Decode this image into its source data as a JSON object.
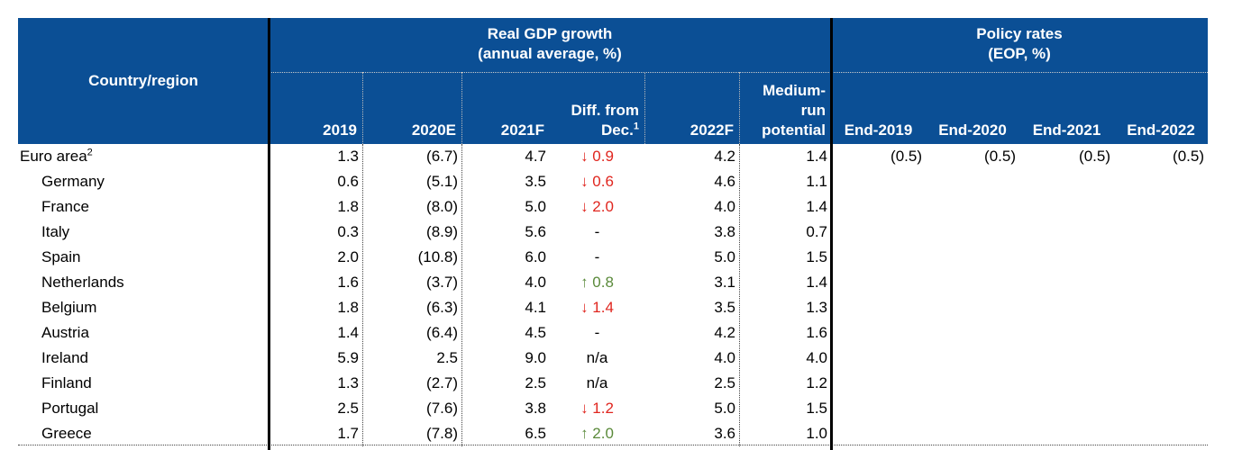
{
  "table": {
    "header": {
      "country": "Country/region",
      "gdp_group": [
        "Real GDP growth",
        "(annual average, %)"
      ],
      "policy_group": [
        "Policy rates",
        "(EOP, %)"
      ],
      "columns": [
        {
          "lines": [
            "2019"
          ]
        },
        {
          "lines": [
            "2020E"
          ]
        },
        {
          "lines": [
            "2021F"
          ]
        },
        {
          "lines": [
            "Diff. from",
            "Dec."
          ],
          "note": "1"
        },
        {
          "lines": [
            "2022F"
          ]
        },
        {
          "lines": [
            "Medium-",
            "run",
            "potential"
          ]
        },
        {
          "lines": [
            "End-2019"
          ]
        },
        {
          "lines": [
            "End-2020"
          ]
        },
        {
          "lines": [
            "End-2021"
          ]
        },
        {
          "lines": [
            "End-2022"
          ]
        }
      ]
    },
    "rows": [
      {
        "name": "Euro area",
        "note": "2",
        "values": [
          "1.3",
          "(6.7)",
          "4.7",
          "↓ 0.9",
          "4.2",
          "1.4",
          "(0.5)",
          "(0.5)",
          "(0.5)",
          "(0.5)"
        ]
      },
      {
        "name": "Germany",
        "values": [
          "0.6",
          "(5.1)",
          "3.5",
          "↓ 0.6",
          "4.6",
          "1.1"
        ]
      },
      {
        "name": "France",
        "values": [
          "1.8",
          "(8.0)",
          "5.0",
          "↓ 2.0",
          "4.0",
          "1.4"
        ]
      },
      {
        "name": "Italy",
        "values": [
          "0.3",
          "(8.9)",
          "5.6",
          "-",
          "3.8",
          "0.7"
        ]
      },
      {
        "name": "Spain",
        "values": [
          "2.0",
          "(10.8)",
          "6.0",
          "-",
          "5.0",
          "1.5"
        ]
      },
      {
        "name": "Netherlands",
        "values": [
          "1.6",
          "(3.7)",
          "4.0",
          "↑ 0.8",
          "3.1",
          "1.4"
        ]
      },
      {
        "name": "Belgium",
        "values": [
          "1.8",
          "(6.3)",
          "4.1",
          "↓ 1.4",
          "3.5",
          "1.3"
        ]
      },
      {
        "name": "Austria",
        "values": [
          "1.4",
          "(6.4)",
          "4.5",
          "-",
          "4.2",
          "1.6"
        ]
      },
      {
        "name": "Ireland",
        "values": [
          "5.9",
          "2.5",
          "9.0",
          "n/a",
          "4.0",
          "4.0"
        ]
      },
      {
        "name": "Finland",
        "values": [
          "1.3",
          "(2.7)",
          "2.5",
          "n/a",
          "2.5",
          "1.2"
        ]
      },
      {
        "name": "Portugal",
        "values": [
          "2.5",
          "(7.6)",
          "3.8",
          "↓ 1.2",
          "5.0",
          "1.5"
        ]
      },
      {
        "name": "Greece",
        "values": [
          "1.7",
          "(7.8)",
          "6.5",
          "↑ 2.0",
          "3.6",
          "1.0"
        ]
      }
    ]
  }
}
